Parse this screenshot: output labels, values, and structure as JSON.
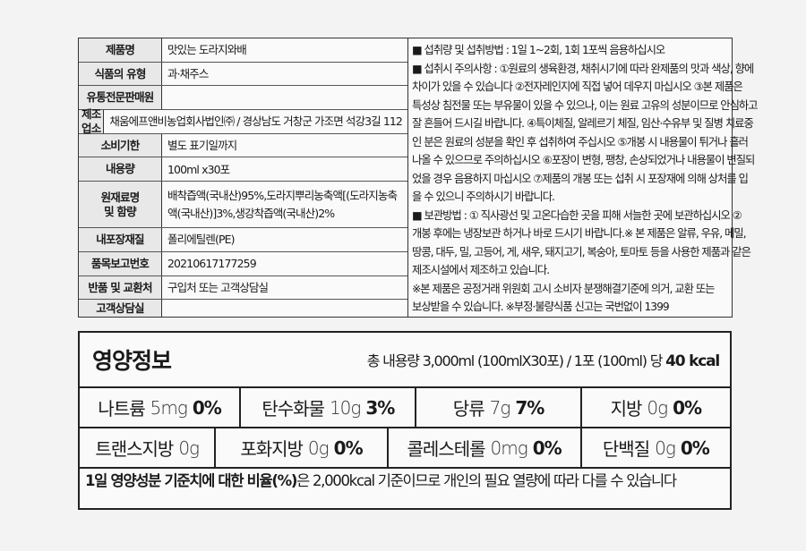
{
  "info_table": {
    "rows": [
      {
        "label": "제품명",
        "value": "맛있는 도라지와배"
      },
      {
        "label": "식품의 유형",
        "value": "과·채주스"
      },
      {
        "label": "유통전문판매원",
        "value": ""
      },
      {
        "label": "제조업소",
        "value": "채움에프앤비농업회사법인㈜ / 경상남도 거창군 가조면 석강3길 112"
      },
      {
        "label": "소비기한",
        "value": "별도 표기일까지"
      },
      {
        "label": "내용량",
        "value": "100ml x30포"
      },
      {
        "label": "원재료명 및 함량",
        "value": "배착즙액(국내산)95%,도라지뿌리농축액[(도라지농축액(국내산)]3%,생강착즙액(국내산)2%"
      },
      {
        "label": "내포장재질",
        "value": "폴리에틸렌(PE)"
      },
      {
        "label": "품목보고번호",
        "value": "20210617177259"
      },
      {
        "label": "반품 및 교환처",
        "value": "구입처 또는 고객상담실"
      },
      {
        "label": "고객상담실",
        "value": ""
      }
    ],
    "notes": [
      "■ 섭취량 및 섭취방법 : 1일 1~2회, 1회 1포씩 음용하십시오",
      "■ 섭취시 주의사항 : ①원료의 생육환경, 채취시기에 따라 완제품의 맛과 색상, 향에",
      "차이가 있을 수 있습니다 ②전자레인지에 직접 넣어 데우지 마십시오 ③본 제품은",
      "특성상 침전물 또는 부유물이 있을 수 있으나, 이는 원료 고유의 성분이므로 안심하고",
      "잘 흔들어 드시길 바랍니다. ④특이체질, 알레르기 체질, 임산·수유부 및 질병 치료중",
      "인 분은 원료의 성분을 확인 후 섭취하여 주십시오 ⑤개봉 시 내용물이 튀거나 흘러",
      "나올 수 있으므로 주의하십시오 ⑥포장이 변형, 팽창, 손상되었거나 내용물이 변질되",
      "었을 경우 음용하지 마십시오 ⑦제품의 개봉 또는 섭취 시 포장재에 의해 상처를 입",
      "을 수 있으니 주의하시기 바랍니다.",
      "■ 보관방법 : ① 직사광선 및 고온다습한 곳을 피해 서늘한 곳에 보관하십시오 ②",
      "개봉 후에는 냉장보관 하거나 바로 드시기 바랍니다.※ 본 제품은 알류, 우유, 메밀,",
      "땅콩, 대두, 밀, 고등어, 게, 새우, 돼지고기, 복숭아, 토마토 등을 사용한 제품과 같은",
      "제조시설에서 제조하고 있습니다.",
      "※본 제품은 공정거래 위원회 고시 소비자 분쟁해결기준에 의거, 교환 또는",
      "보상받을 수 있습니다. ※부정·불량식품 신고는 국번없이 1399"
    ]
  },
  "nutrition": {
    "title": "영양정보",
    "serving": "총 내용량 3,000ml (100mlX30포) / 1포 (100ml) 당",
    "kcal": "40 kcal",
    "row1": [
      {
        "name": "나트륨",
        "amount": "5mg",
        "pct": "0%"
      },
      {
        "name": "탄수화물",
        "amount": "10g",
        "pct": "3%"
      },
      {
        "name": "당류",
        "amount": "7g",
        "pct": "7%"
      },
      {
        "name": "지방",
        "amount": "0g",
        "pct": "0%"
      }
    ],
    "row2": [
      {
        "name": "트랜스지방",
        "amount": "0g",
        "pct": ""
      },
      {
        "name": "포화지방",
        "amount": "0g",
        "pct": "0%"
      },
      {
        "name": "콜레스테롤",
        "amount": "0mg",
        "pct": "0%"
      },
      {
        "name": "단백질",
        "amount": "0g",
        "pct": "0%"
      }
    ],
    "footnote_bold": "1일 영양성분 기준치에 대한 비율(%)",
    "footnote_rest": "은 2,000kcal 기준이므로 개인의 필요 열량에 따라 다를 수 있습니다"
  }
}
